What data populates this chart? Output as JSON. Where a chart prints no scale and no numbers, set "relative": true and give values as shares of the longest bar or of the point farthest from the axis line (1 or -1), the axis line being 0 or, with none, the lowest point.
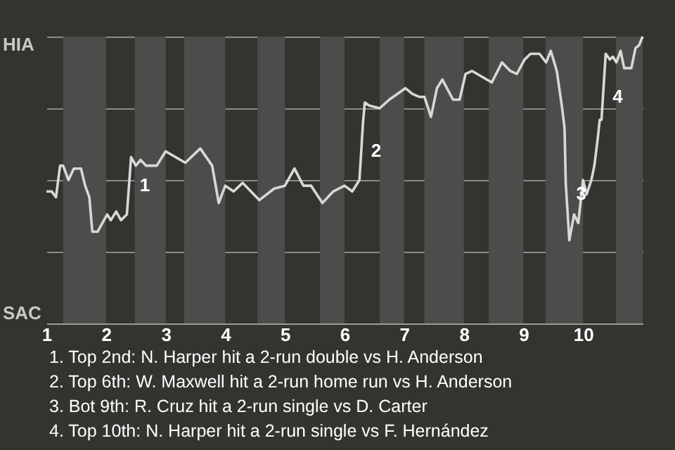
{
  "chart_data": {
    "type": "line",
    "relative": true,
    "x": [
      1.0,
      1.09,
      1.16,
      1.23,
      1.28,
      1.37,
      1.46,
      1.58,
      1.65,
      1.72,
      1.77,
      1.86,
      2.02,
      2.08,
      2.17,
      2.25,
      2.35,
      2.42,
      2.5,
      2.58,
      2.67,
      2.85,
      3.0,
      3.33,
      3.58,
      3.78,
      3.89,
      4.0,
      4.14,
      4.29,
      4.57,
      4.82,
      5.0,
      5.16,
      5.31,
      5.44,
      5.63,
      5.81,
      6.0,
      6.13,
      6.25,
      6.31,
      6.34,
      6.41,
      6.59,
      6.75,
      7.02,
      7.14,
      7.25,
      7.34,
      7.45,
      7.55,
      7.64,
      7.82,
      7.93,
      8.03,
      8.14,
      8.47,
      8.64,
      8.78,
      8.89,
      9.02,
      9.12,
      9.27,
      9.38,
      9.46,
      9.56,
      9.65,
      9.69,
      9.71,
      9.77,
      9.85,
      9.92,
      10.0,
      10.06,
      10.14,
      10.19,
      10.25,
      10.28,
      10.31,
      10.38,
      10.45,
      10.5,
      10.56,
      10.63,
      10.69,
      10.81,
      10.88,
      10.94,
      11.0
    ],
    "series": [
      {
        "color": "#d8d8d6",
        "values": [
          0.46,
          0.46,
          0.44,
          0.55,
          0.55,
          0.5,
          0.54,
          0.54,
          0.48,
          0.44,
          0.32,
          0.32,
          0.38,
          0.36,
          0.39,
          0.36,
          0.38,
          0.58,
          0.55,
          0.57,
          0.55,
          0.55,
          0.6,
          0.56,
          0.61,
          0.55,
          0.42,
          0.48,
          0.46,
          0.49,
          0.43,
          0.47,
          0.48,
          0.54,
          0.48,
          0.48,
          0.42,
          0.46,
          0.48,
          0.46,
          0.5,
          0.7,
          0.77,
          0.76,
          0.75,
          0.78,
          0.82,
          0.8,
          0.79,
          0.79,
          0.72,
          0.82,
          0.85,
          0.78,
          0.78,
          0.87,
          0.88,
          0.84,
          0.91,
          0.88,
          0.87,
          0.92,
          0.94,
          0.94,
          0.91,
          0.95,
          0.88,
          0.75,
          0.68,
          0.49,
          0.29,
          0.38,
          0.35,
          0.5,
          0.45,
          0.5,
          0.55,
          0.65,
          0.71,
          0.71,
          0.94,
          0.92,
          0.93,
          0.91,
          0.95,
          0.89,
          0.89,
          0.96,
          0.97,
          1.0
        ]
      }
    ],
    "xlim": [
      1,
      11
    ],
    "xticks": [
      1,
      2,
      3,
      4,
      5,
      6,
      7,
      8,
      9,
      10
    ],
    "grid": "y",
    "marker": "none",
    "line_style": "solid",
    "bands": [
      {
        "axis": "x",
        "from": 1.28,
        "to": 2,
        "color": "#4c4c4a"
      },
      {
        "axis": "x",
        "from": 2.48,
        "to": 3,
        "color": "#4c4c4a"
      },
      {
        "axis": "x",
        "from": 3.31,
        "to": 4,
        "color": "#4c4c4a"
      },
      {
        "axis": "x",
        "from": 4.54,
        "to": 5,
        "color": "#4c4c4a"
      },
      {
        "axis": "x",
        "from": 5.59,
        "to": 6,
        "color": "#4c4c4a"
      },
      {
        "axis": "x",
        "from": 6.59,
        "to": 7,
        "color": "#4c4c4a"
      },
      {
        "axis": "x",
        "from": 7.34,
        "to": 8,
        "color": "#4c4c4a"
      },
      {
        "axis": "x",
        "from": 8.42,
        "to": 9,
        "color": "#4c4c4a"
      },
      {
        "axis": "x",
        "from": 9.37,
        "to": 10,
        "color": "#4c4c4a"
      },
      {
        "axis": "x",
        "from": 10.55,
        "to": 11,
        "color": "#4c4c4a"
      }
    ],
    "annotations": [
      {
        "text": "1",
        "x": 2.4,
        "y": 0.48
      },
      {
        "text": "2",
        "x": 6.28,
        "y": 0.6
      },
      {
        "text": "3",
        "x": 9.72,
        "y": 0.45
      },
      {
        "text": "4",
        "x": 10.33,
        "y": 0.79
      },
      "HIA",
      "SAC",
      "1. Top 2nd: N. Harper hit a 2-run double vs H. Anderson",
      "2. Top 6th: W. Maxwell hit a 2-run home run vs H. Anderson",
      "3. Bot 9th: R. Cruz hit a 2-run single vs D. Carter",
      "4. Top 10th: N. Harper hit a 2-run single vs F. Hernández"
    ]
  }
}
